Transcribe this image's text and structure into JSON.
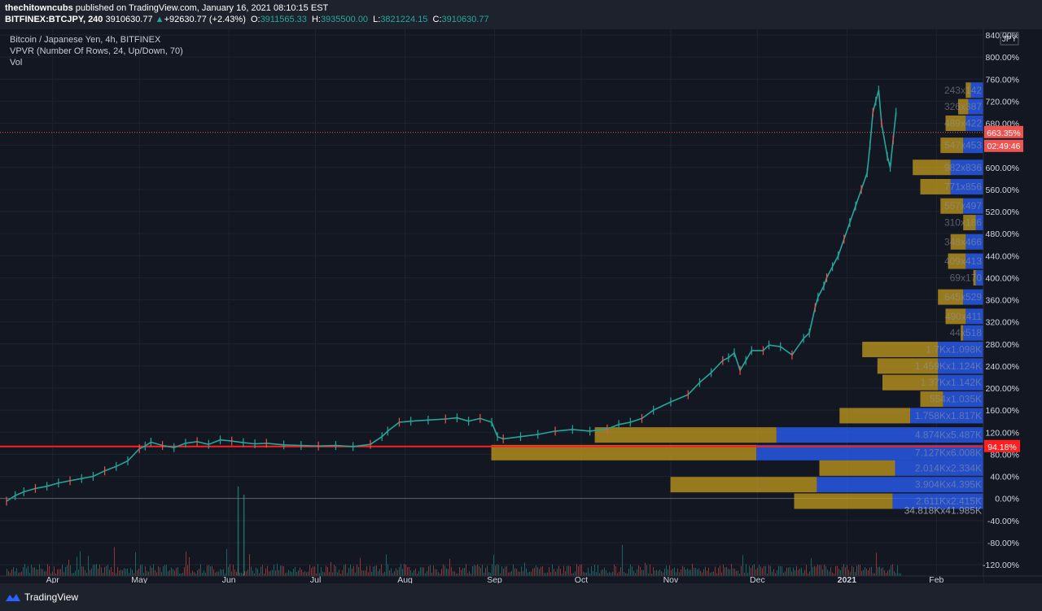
{
  "header": {
    "author": "thechitowncubs",
    "published_text": "published on TradingView.com, January 16, 2021 08:10:15 EST",
    "symbol": "BITFINEX:BTCJPY, 240",
    "last": "3910630.77",
    "change": "+92630.77 (+2.43%)",
    "o_label": "O:",
    "o": "3911565.33",
    "h_label": "H:",
    "h": "3935500.00",
    "l_label": "L:",
    "l": "3821224.15",
    "c_label": "C:",
    "c": "3910630.77"
  },
  "legend": {
    "title": "Bitcoin / Japanese Yen, 4h, BITFINEX",
    "indicator": "VPVR (Number Of Rows, 24, Up/Down, 70)",
    "volume": "Vol"
  },
  "footer": {
    "brand": "TradingView"
  },
  "colors": {
    "up": "#26a69a",
    "down": "#ef5350",
    "background": "#131722",
    "vp_up": "#2962ff",
    "vp_down": "#c49b1e",
    "horizontal_line": "#ff1f1f",
    "price_badge": "#ef5350"
  },
  "chart_data": {
    "type": "line",
    "title": "Bitcoin / Japanese Yen, 4h, BITFINEX",
    "currency_label": "JPY",
    "y_axis": {
      "scale": "percent",
      "ticks": [
        "840.00%",
        "800.00%",
        "760.00%",
        "720.00%",
        "680.00%",
        "640.00%",
        "600.00%",
        "560.00%",
        "520.00%",
        "480.00%",
        "440.00%",
        "400.00%",
        "360.00%",
        "320.00%",
        "280.00%",
        "240.00%",
        "200.00%",
        "160.00%",
        "120.00%",
        "80.00%",
        "40.00%",
        "0.00%",
        "-40.00%",
        "-80.00%",
        "-120.00%"
      ],
      "tick_values": [
        840,
        800,
        760,
        720,
        680,
        640,
        600,
        560,
        520,
        480,
        440,
        400,
        360,
        320,
        280,
        240,
        200,
        160,
        120,
        80,
        40,
        0,
        -40,
        -80,
        -120
      ],
      "range": [
        -120,
        840
      ]
    },
    "x_axis": {
      "labels": [
        "Apr",
        "May",
        "Jun",
        "Jul",
        "Aug",
        "Sep",
        "Oct",
        "Nov",
        "Dec",
        "2021",
        "Feb"
      ],
      "positions_days": [
        16,
        46,
        77,
        107,
        138,
        169,
        199,
        230,
        260,
        291,
        322
      ],
      "range_days": [
        0,
        336
      ]
    },
    "series": [
      {
        "x_days": [
          0,
          3,
          6,
          10,
          14,
          18,
          22,
          26,
          30,
          34,
          38,
          42,
          46,
          48,
          50,
          54,
          58,
          62,
          66,
          70,
          74,
          78,
          82,
          86,
          90,
          96,
          102,
          108,
          114,
          120,
          126,
          130,
          132,
          136,
          140,
          146,
          152,
          156,
          160,
          164,
          168,
          170,
          172,
          178,
          184,
          190,
          196,
          202,
          208,
          212,
          216,
          220,
          224,
          230,
          236,
          240,
          244,
          248,
          250,
          252,
          254,
          256,
          258,
          262,
          264,
          268,
          272,
          276,
          278,
          280,
          281,
          283,
          284,
          286,
          288,
          290,
          292,
          294,
          296,
          298,
          299,
          300,
          301,
          302,
          303,
          305,
          306,
          307,
          308
        ],
        "values": [
          -5,
          5,
          12,
          18,
          22,
          28,
          32,
          36,
          40,
          50,
          58,
          68,
          90,
          95,
          102,
          96,
          92,
          100,
          103,
          98,
          106,
          104,
          101,
          99,
          100,
          97,
          96,
          95,
          96,
          94,
          98,
          112,
          122,
          138,
          140,
          142,
          144,
          146,
          140,
          145,
          138,
          112,
          108,
          112,
          116,
          122,
          125,
          122,
          126,
          134,
          138,
          145,
          160,
          175,
          188,
          210,
          228,
          250,
          255,
          264,
          232,
          250,
          268,
          268,
          278,
          275,
          260,
          290,
          300,
          346,
          365,
          385,
          400,
          420,
          440,
          470,
          500,
          530,
          560,
          590,
          640,
          700,
          720,
          740,
          680,
          620,
          600,
          650,
          700
        ]
      }
    ],
    "current_price_label": "663.35%",
    "countdown_label": "02:49:46",
    "horizontal_line_label": "94.18%",
    "horizontal_line_value": 94.18,
    "volume_profile": {
      "rows": [
        {
          "label": "243x142",
          "price": 740,
          "down": 2,
          "up": 5
        },
        {
          "label": "326x387",
          "price": 710,
          "down": 4,
          "up": 6
        },
        {
          "label": "489x422",
          "price": 680,
          "down": 8,
          "up": 7
        },
        {
          "label": "547x453",
          "price": 640,
          "down": 9,
          "up": 8
        },
        {
          "label": "982x836",
          "price": 600,
          "down": 15,
          "up": 13
        },
        {
          "label": "771x856",
          "price": 565,
          "down": 12,
          "up": 13
        },
        {
          "label": "557x497",
          "price": 530,
          "down": 9,
          "up": 8
        },
        {
          "label": "310x186",
          "price": 500,
          "down": 5,
          "up": 3
        },
        {
          "label": "348x466",
          "price": 465,
          "down": 6,
          "up": 7
        },
        {
          "label": "409x413",
          "price": 430,
          "down": 7,
          "up": 7
        },
        {
          "label": "69x170",
          "price": 400,
          "down": 1,
          "up": 3
        },
        {
          "label": "645x529",
          "price": 365,
          "down": 10,
          "up": 8
        },
        {
          "label": "490x411",
          "price": 330,
          "down": 8,
          "up": 7
        },
        {
          "label": "44x518",
          "price": 300,
          "down": 1,
          "up": 8
        },
        {
          "label": "1.7Kx1.098K",
          "price": 270,
          "down": 30,
          "up": 18
        },
        {
          "label": "1.459Kx1.124K",
          "price": 240,
          "down": 24,
          "up": 18
        },
        {
          "label": "1.37Kx1.142K",
          "price": 210,
          "down": 22,
          "up": 18
        },
        {
          "label": "554x1.035K",
          "price": 180,
          "down": 9,
          "up": 16
        },
        {
          "label": "1.758Kx1.817K",
          "price": 150,
          "down": 28,
          "up": 29
        },
        {
          "label": "4.874Kx5.487K",
          "price": 115,
          "down": 72,
          "up": 82
        },
        {
          "label": "7.127Kx6.008K",
          "price": 83,
          "down": 105,
          "up": 90
        },
        {
          "label": "2.014Kx2.334K",
          "price": 55,
          "down": 30,
          "up": 35
        },
        {
          "label": "3.904Kx4.395K",
          "price": 25,
          "down": 58,
          "up": 66
        },
        {
          "label": "2.611Kx2.415K",
          "price": -5,
          "down": 39,
          "up": 36
        }
      ],
      "total_label": "34.818Kx41.985K"
    },
    "volume_label": "Vol",
    "grid": true
  }
}
